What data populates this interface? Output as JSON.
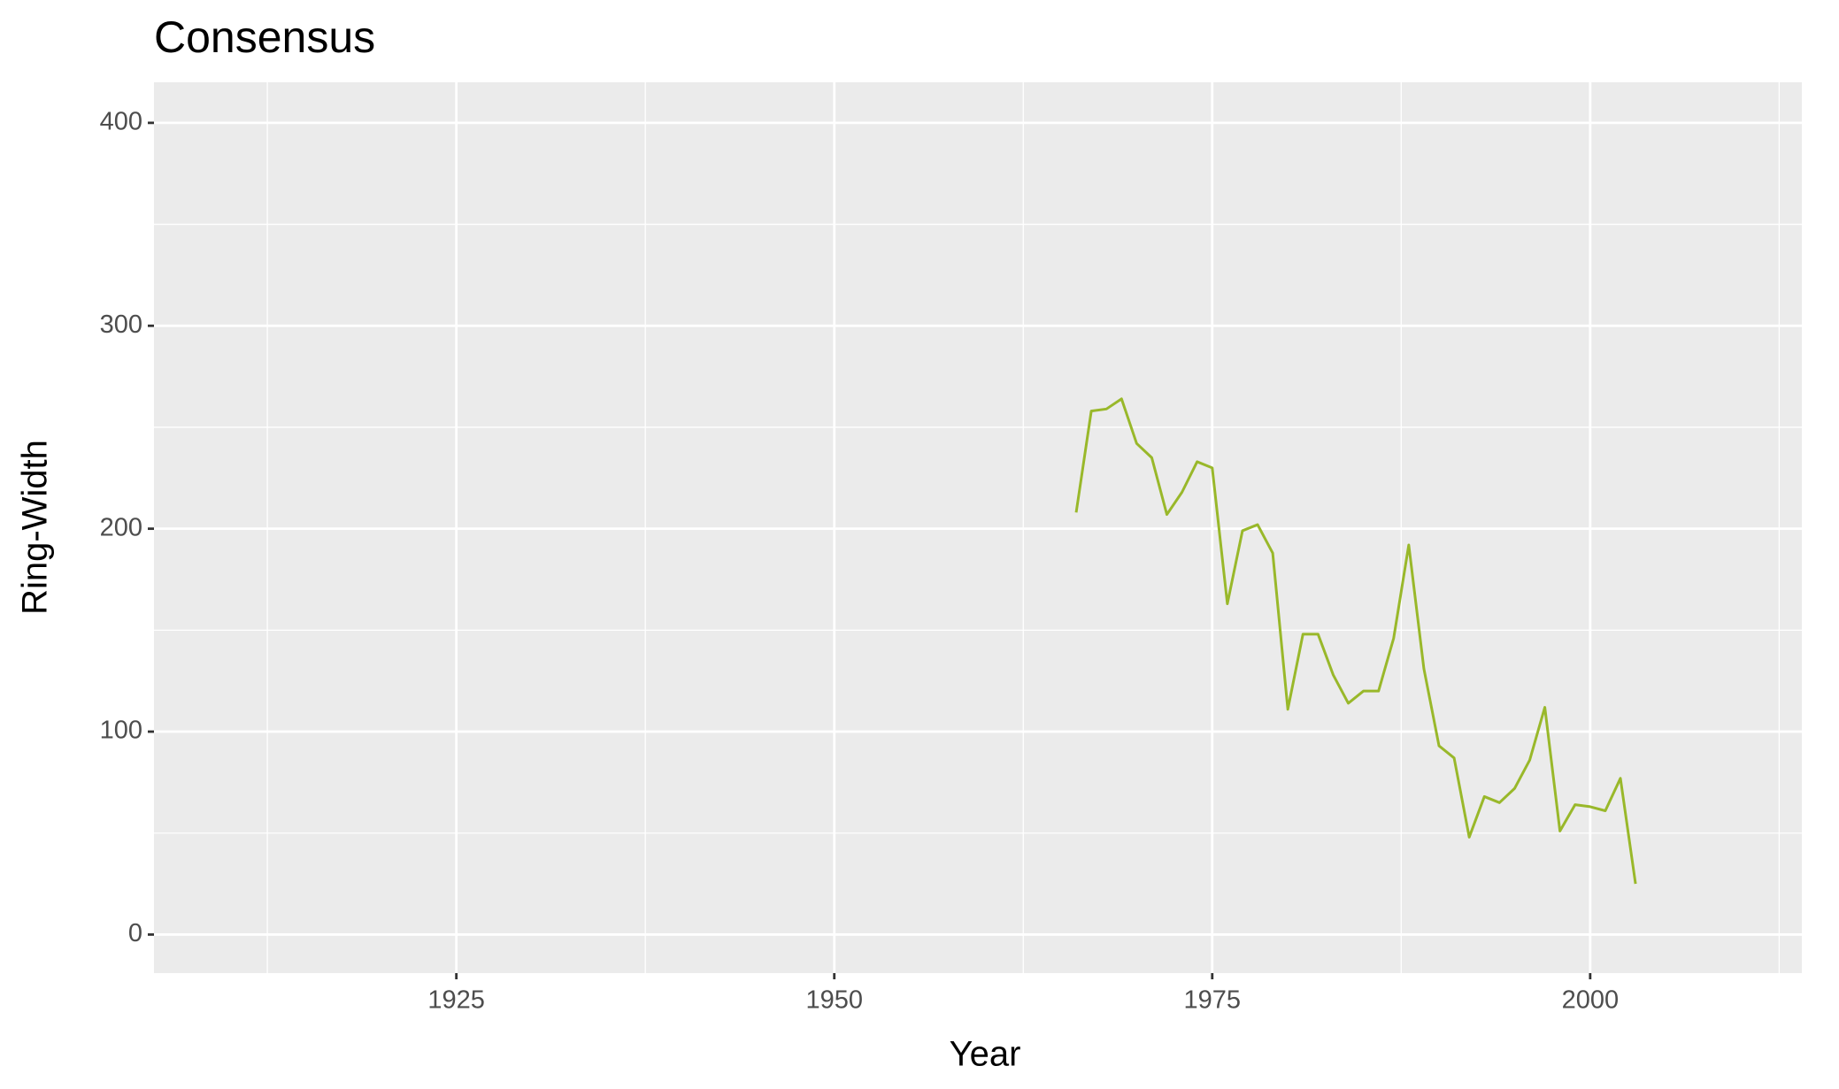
{
  "chart_data": {
    "type": "line",
    "title": "Consensus",
    "x_label": "Year",
    "y_label": "Ring-Width",
    "x": [
      1966,
      1967,
      1968,
      1969,
      1970,
      1971,
      1972,
      1973,
      1974,
      1975,
      1976,
      1977,
      1978,
      1979,
      1980,
      1981,
      1982,
      1983,
      1984,
      1985,
      1986,
      1987,
      1988,
      1989,
      1990,
      1991,
      1992,
      1993,
      1994,
      1995,
      1996,
      1997,
      1998,
      1999,
      2000,
      2001,
      2002,
      2003
    ],
    "values": [
      208,
      258,
      259,
      264,
      242,
      235,
      207,
      218,
      233,
      230,
      163,
      199,
      202,
      188,
      111,
      148,
      148,
      128,
      114,
      120,
      120,
      146,
      192,
      131,
      93,
      87,
      48,
      68,
      65,
      72,
      86,
      112,
      51,
      64,
      63,
      61,
      77,
      25
    ],
    "color": "#99b82a",
    "xlim": [
      1905,
      2014
    ],
    "ylim": [
      -19,
      420
    ],
    "xticks": [
      1925,
      1950,
      1975,
      2000
    ],
    "yticks": [
      0,
      100,
      200,
      300,
      400
    ],
    "grid": true
  }
}
